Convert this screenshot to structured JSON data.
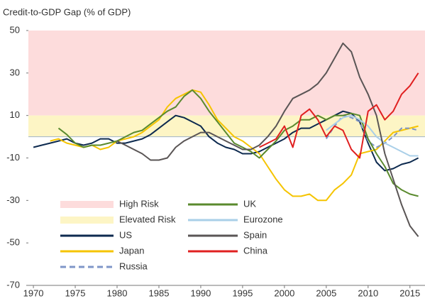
{
  "chart_data": {
    "type": "line",
    "title": "Credit-to-GDP Gap (% of GDP)",
    "x": [
      1970,
      1971,
      1972,
      1973,
      1974,
      1975,
      1976,
      1977,
      1978,
      1979,
      1980,
      1981,
      1982,
      1983,
      1984,
      1985,
      1986,
      1987,
      1988,
      1989,
      1990,
      1991,
      1992,
      1993,
      1994,
      1995,
      1996,
      1997,
      1998,
      1999,
      2000,
      2001,
      2002,
      2003,
      2004,
      2005,
      2006,
      2007,
      2008,
      2009,
      2010,
      2011,
      2012,
      2013,
      2014,
      2015,
      2016
    ],
    "bands": [
      {
        "name": "High Risk",
        "from": 10,
        "to": 50,
        "color": "#fddcdc"
      },
      {
        "name": "Elevated Risk",
        "from": 0,
        "to": 10,
        "color": "#fdf5c5"
      }
    ],
    "series": [
      {
        "name": "US",
        "color": "#0d2a4f",
        "values": [
          -5,
          -4,
          -3,
          -2,
          -1,
          -3,
          -4,
          -3,
          -1,
          -1,
          -3,
          -3,
          -2,
          -1,
          1,
          4,
          7,
          10,
          9,
          7,
          5,
          0,
          -3,
          -5,
          -6,
          -8,
          -8,
          -7,
          -5,
          -3,
          -1,
          2,
          4,
          4,
          6,
          8,
          10,
          12,
          11,
          7,
          -3,
          -12,
          -16,
          -15,
          -13,
          -12,
          -10
        ]
      },
      {
        "name": "Japan",
        "color": "#f5c400",
        "values": [
          null,
          null,
          -2,
          -1,
          -3,
          -4,
          -5,
          -4,
          -6,
          -5,
          -2,
          -1,
          0,
          2,
          5,
          8,
          14,
          18,
          20,
          22,
          21,
          15,
          8,
          4,
          0,
          -2,
          -5,
          -8,
          -14,
          -20,
          -25,
          -28,
          -28,
          -27,
          -30,
          -30,
          -25,
          -22,
          -18,
          -8,
          -7,
          -6,
          -2,
          2,
          3,
          4,
          5
        ]
      },
      {
        "name": "Russia",
        "color": "#7f96c8",
        "dash": true,
        "values": [
          null,
          null,
          null,
          null,
          null,
          null,
          null,
          null,
          null,
          null,
          null,
          null,
          null,
          null,
          null,
          null,
          null,
          null,
          null,
          null,
          null,
          null,
          null,
          null,
          null,
          null,
          null,
          null,
          null,
          null,
          null,
          null,
          null,
          null,
          null,
          -1,
          5,
          10,
          9,
          7,
          -2,
          -5,
          -3,
          0,
          4,
          4,
          3
        ]
      },
      {
        "name": "UK",
        "color": "#5a8a2e",
        "values": [
          null,
          null,
          null,
          4,
          1,
          -3,
          -5,
          -4,
          -4,
          -3,
          -2,
          0,
          2,
          3,
          6,
          9,
          12,
          14,
          19,
          22,
          18,
          12,
          7,
          2,
          -3,
          -5,
          -7,
          -10,
          -6,
          -2,
          3,
          5,
          8,
          8,
          10,
          8,
          10,
          10,
          11,
          10,
          -1,
          -8,
          -14,
          -22,
          -25,
          -27,
          -28
        ]
      },
      {
        "name": "Eurozone",
        "color": "#a9cfe8",
        "values": [
          null,
          null,
          null,
          null,
          null,
          null,
          null,
          null,
          null,
          null,
          null,
          null,
          null,
          null,
          null,
          null,
          null,
          null,
          null,
          null,
          null,
          null,
          null,
          null,
          null,
          null,
          null,
          null,
          null,
          null,
          null,
          null,
          null,
          null,
          null,
          3,
          6,
          9,
          10,
          8,
          5,
          0,
          -3,
          -5,
          -7,
          -9,
          -9
        ]
      },
      {
        "name": "Spain",
        "color": "#5a5555",
        "values": [
          null,
          null,
          null,
          null,
          null,
          null,
          null,
          null,
          null,
          null,
          -2,
          -4,
          -6,
          -8,
          -11,
          -11,
          -10,
          -5,
          -2,
          0,
          2,
          2,
          0,
          -2,
          -4,
          -6,
          -6,
          -4,
          0,
          5,
          12,
          18,
          20,
          22,
          25,
          30,
          37,
          44,
          40,
          28,
          20,
          10,
          -8,
          -20,
          -32,
          -42,
          -47
        ]
      },
      {
        "name": "China",
        "color": "#e02020",
        "values": [
          null,
          null,
          null,
          null,
          null,
          null,
          null,
          null,
          null,
          null,
          null,
          null,
          null,
          null,
          null,
          null,
          null,
          null,
          null,
          null,
          null,
          null,
          null,
          null,
          null,
          null,
          null,
          -5,
          -3,
          -1,
          5,
          -5,
          10,
          13,
          8,
          0,
          5,
          3,
          -6,
          -10,
          12,
          15,
          8,
          12,
          20,
          24,
          30
        ]
      }
    ],
    "xlim": [
      1969.4,
      2016.8
    ],
    "xticks": [
      1970,
      1975,
      1980,
      1985,
      1990,
      1995,
      2000,
      2005,
      2010,
      2015
    ],
    "ylim": [
      -70,
      50
    ],
    "yticks": [
      50,
      30,
      10,
      -10,
      -30,
      -50,
      -70
    ]
  }
}
